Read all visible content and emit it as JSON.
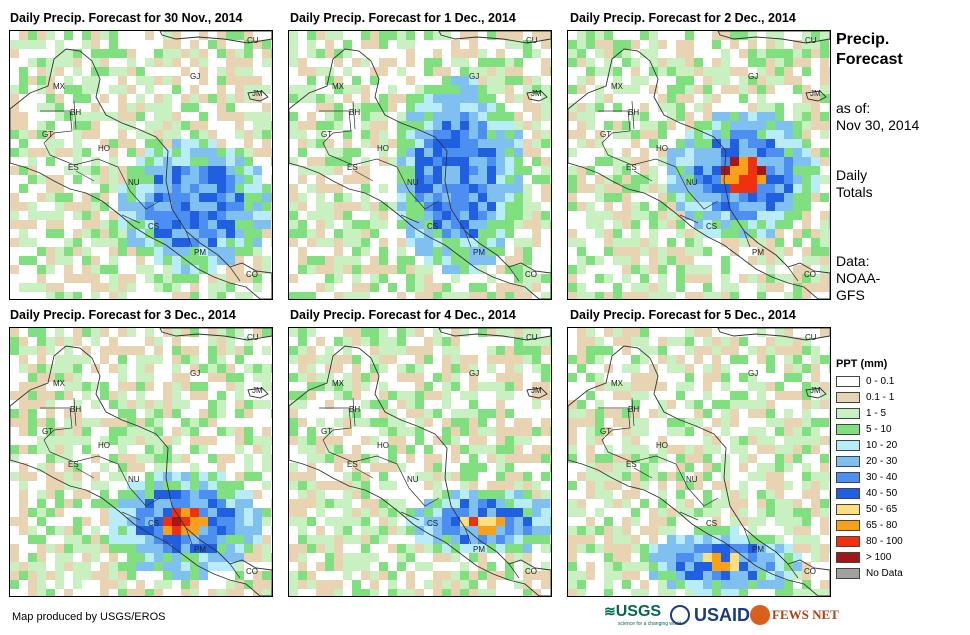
{
  "panels": [
    {
      "title": "Daily Precip. Forecast for 30 Nov., 2014",
      "variant": 0
    },
    {
      "title": "Daily Precip. Forecast for 1 Dec., 2014",
      "variant": 1
    },
    {
      "title": "Daily Precip. Forecast for 2 Dec., 2014",
      "variant": 2
    },
    {
      "title": "Daily Precip. Forecast for 3 Dec., 2014",
      "variant": 3
    },
    {
      "title": "Daily Precip. Forecast for 4 Dec., 2014",
      "variant": 4
    },
    {
      "title": "Daily Precip. Forecast for 5 Dec., 2014",
      "variant": 5
    }
  ],
  "country_labels": [
    "CU",
    "MX",
    "JM",
    "GJ",
    "BH",
    "GT",
    "HO",
    "ES",
    "NU",
    "CS",
    "PM",
    "CO"
  ],
  "sidebar": {
    "title_line1": "Precip.",
    "title_line2": "Forecast",
    "asof_label": "as of:",
    "asof_date": "Nov 30, 2014",
    "totals_line1": "Daily",
    "totals_line2": "Totals",
    "data_line1": "Data:",
    "data_line2": "NOAA-",
    "data_line3": "GFS"
  },
  "legend": {
    "title": "PPT (mm)",
    "items": [
      {
        "label": "0 - 0.1",
        "color": "#ffffff"
      },
      {
        "label": "0.1 - 1",
        "color": "#e8d4b3"
      },
      {
        "label": "1 - 5",
        "color": "#c8f0c0"
      },
      {
        "label": "5 - 10",
        "color": "#80e080"
      },
      {
        "label": "10 - 20",
        "color": "#b8ecf8"
      },
      {
        "label": "20 - 30",
        "color": "#80c0f0"
      },
      {
        "label": "30 - 40",
        "color": "#4c8ff0"
      },
      {
        "label": "40 - 50",
        "color": "#2060e0"
      },
      {
        "label": "50 - 65",
        "color": "#fce080"
      },
      {
        "label": "65 - 80",
        "color": "#f8a018"
      },
      {
        "label": "80 - 100",
        "color": "#f03010"
      },
      {
        "label": "> 100",
        "color": "#a01818"
      },
      {
        "label": "No Data",
        "color": "#a0a0a0"
      }
    ]
  },
  "credit": "Map produced by USGS/EROS",
  "logos": {
    "usgs": "USGS",
    "usgs_tagline": "science for a changing world",
    "usaid": "USAID",
    "fewsnet": "FEWS NET"
  }
}
